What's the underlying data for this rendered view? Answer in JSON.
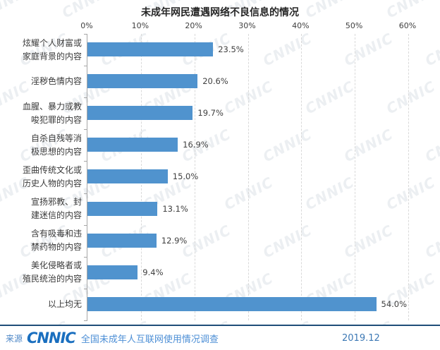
{
  "title": "未成年网民遭遇网络不良信息的情况",
  "chart_data": {
    "type": "bar",
    "orientation": "horizontal",
    "title": "未成年网民遭遇网络不良信息的情况",
    "categories": [
      "炫耀个人财富或\n家庭背景的内容",
      "淫秽色情内容",
      "血腥、暴力或教\n唆犯罪的内容",
      "自杀自残等消\n极思想的内容",
      "歪曲传统文化或\n历史人物的内容",
      "宣扬邪教、封\n建迷信的内容",
      "含有吸毒和违\n禁药物的内容",
      "美化侵略者或\n殖民统治的内容",
      "以上均无"
    ],
    "values": [
      23.5,
      20.6,
      19.7,
      16.9,
      15.0,
      13.1,
      12.9,
      9.4,
      54.0
    ],
    "value_labels": [
      "23.5%",
      "20.6%",
      "19.7%",
      "16.9%",
      "15.0%",
      "13.1%",
      "12.9%",
      "9.4%",
      "54.0%"
    ],
    "x_ticks": [
      "0%",
      "10%",
      "20%",
      "30%",
      "40%",
      "50%",
      "60%"
    ],
    "xlim": [
      0,
      60
    ],
    "bar_color": "#5093CE",
    "grid": "dashed-vertical",
    "legend": "none"
  },
  "watermark": {
    "text": "CNNIC"
  },
  "footer": {
    "source_label": "来源",
    "logo": "CNNIC",
    "source_text": "全国未成年人互联网使用情况调查",
    "date": "2019.12"
  }
}
